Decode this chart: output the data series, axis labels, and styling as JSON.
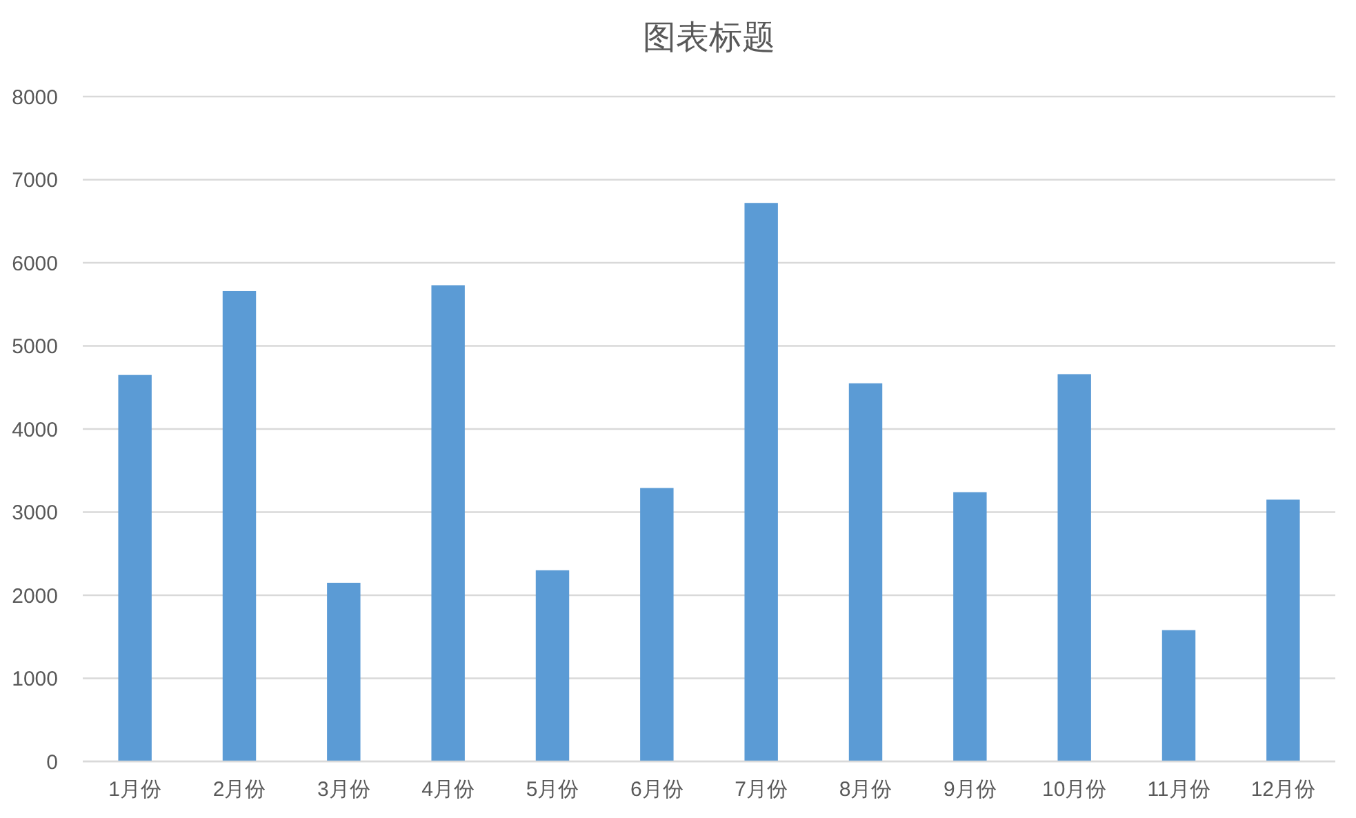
{
  "chart_data": {
    "type": "bar",
    "title": "图表标题",
    "categories": [
      "1月份",
      "2月份",
      "3月份",
      "4月份",
      "5月份",
      "6月份",
      "7月份",
      "8月份",
      "9月份",
      "10月份",
      "11月份",
      "12月份"
    ],
    "values": [
      4650,
      5660,
      2150,
      5730,
      2300,
      3290,
      6720,
      4550,
      3240,
      4660,
      1580,
      3150
    ],
    "color": "#5b9bd5",
    "ylim": [
      0,
      8000
    ],
    "yticks": [
      0,
      1000,
      2000,
      3000,
      4000,
      5000,
      6000,
      7000,
      8000
    ],
    "grid": "y"
  }
}
